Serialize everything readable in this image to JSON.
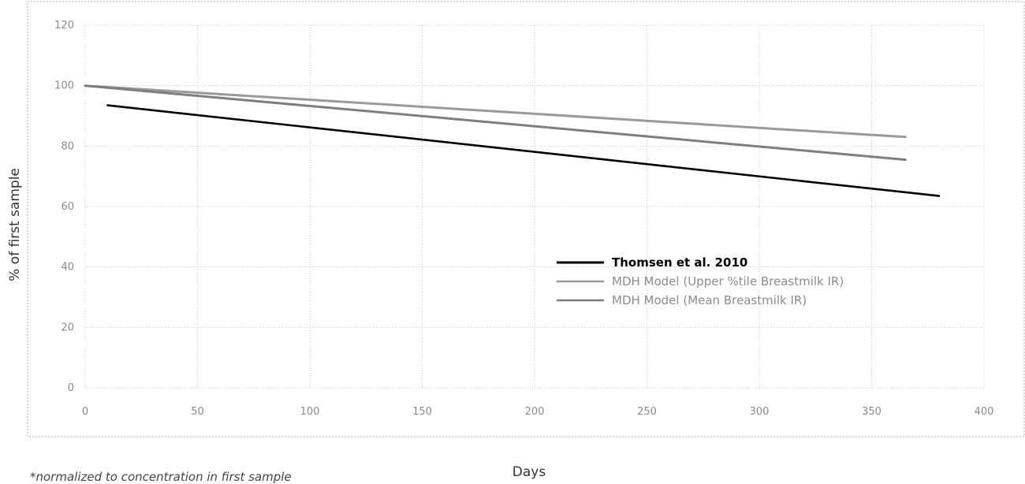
{
  "chart_data": {
    "type": "line",
    "xlabel": "Days",
    "ylabel": "% of first sample",
    "xlim": [
      0,
      400
    ],
    "ylim": [
      0,
      120
    ],
    "x_ticks": [
      "0",
      "50",
      "100",
      "150",
      "200",
      "250",
      "300",
      "350",
      "400"
    ],
    "y_ticks": [
      "0",
      "20",
      "40",
      "60",
      "80",
      "100",
      "120"
    ],
    "grid": "on",
    "legend_position": "center-right",
    "series": [
      {
        "name": "Thomsen et al. 2010",
        "color": "#000000",
        "x": [
          10,
          380
        ],
        "y": [
          93.5,
          63.5
        ]
      },
      {
        "name": "MDH Model (Upper %tile Breastmilk IR)",
        "color": "#9a9a9a",
        "x": [
          0,
          365
        ],
        "y": [
          100,
          83
        ]
      },
      {
        "name": "MDH Model (Mean Breastmilk IR)",
        "color": "#7e7e7e",
        "x": [
          0,
          365
        ],
        "y": [
          100,
          75.5
        ]
      }
    ]
  },
  "footnote": "*normalized to concentration in first sample"
}
